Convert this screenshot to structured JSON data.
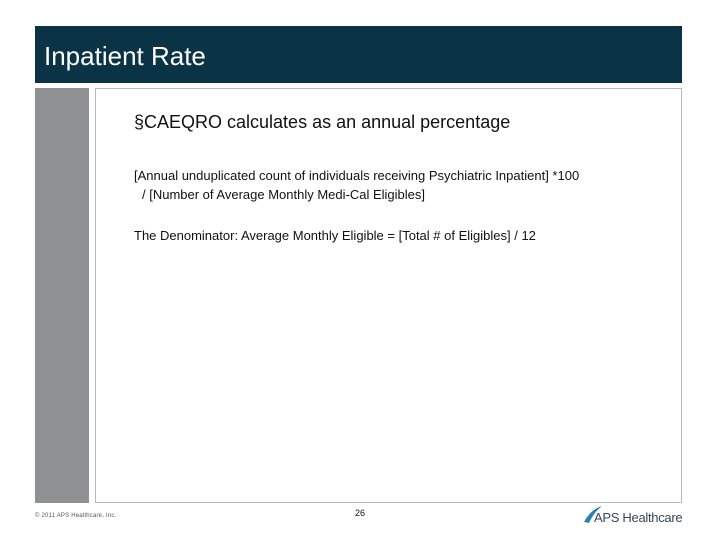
{
  "slide": {
    "title": "Inpatient Rate",
    "bullet": "§CAEQRO calculates as an annual percentage",
    "formula_line1": "[Annual unduplicated count of individuals receiving Psychiatric Inpatient] *100",
    "formula_line2": "/ [Number of Average Monthly Medi-Cal Eligibles]",
    "denominator_line": "The Denominator: Average Monthly Eligible = [Total # of Eligibles] / 12"
  },
  "footer": {
    "copyright": "© 2011 APS Healthcare, Inc.",
    "page_number": "26",
    "logo_text": "APS Healthcare"
  },
  "colors": {
    "title_bar": "#0a3346",
    "side_bar": "#8f9091",
    "logo_accent": "#2f7fb1",
    "logo_text": "#35495a"
  }
}
